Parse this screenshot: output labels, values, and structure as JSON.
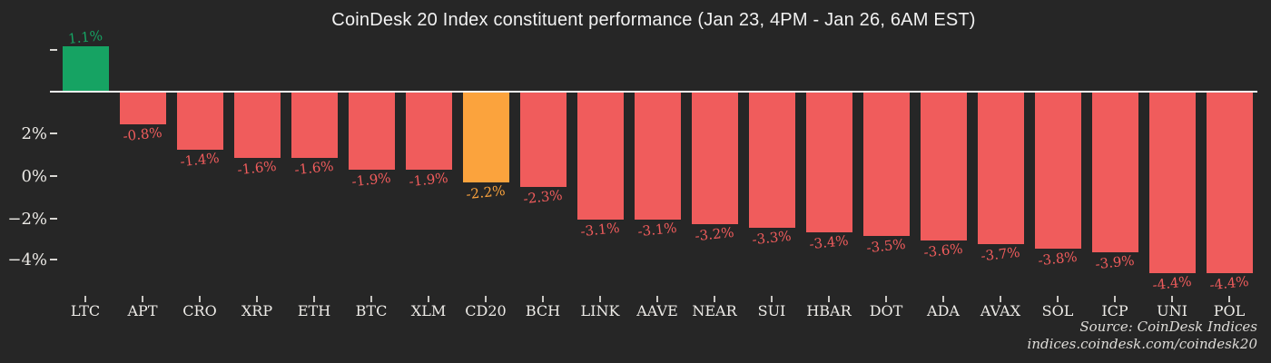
{
  "title": "CoinDesk 20 Index constituent performance (Jan 23, 4PM - Jan 26, 6AM EST)",
  "source": {
    "line1": "Source: CoinDesk Indices",
    "line2": "indices.coindesk.com/coindesk20"
  },
  "colors": {
    "background": "#262626",
    "positive": "#16a363",
    "negative": "#f05c5c",
    "index_highlight": "#fba33d",
    "baseline": "#f2f2f2",
    "axis_text": "#ebe9e5"
  },
  "y_axis": {
    "tick_labels": [
      "",
      "2%",
      "0%",
      "−2%",
      "−4%"
    ]
  },
  "chart_data": {
    "type": "bar",
    "title": "CoinDesk 20 Index constituent performance (Jan 23, 4PM - Jan 26, 6AM EST)",
    "xlabel": "",
    "ylabel": "",
    "grid": false,
    "legend": "none",
    "y_tick_labels_shown": [
      "2%",
      "0%",
      "−2%",
      "−4%"
    ],
    "categories": [
      "LTC",
      "APT",
      "CRO",
      "XRP",
      "ETH",
      "BTC",
      "XLM",
      "CD20",
      "BCH",
      "LINK",
      "AAVE",
      "NEAR",
      "SUI",
      "HBAR",
      "DOT",
      "ADA",
      "AVAX",
      "SOL",
      "ICP",
      "UNI",
      "POL"
    ],
    "values": [
      1.1,
      -0.8,
      -1.4,
      -1.6,
      -1.6,
      -1.9,
      -1.9,
      -2.2,
      -2.3,
      -3.1,
      -3.1,
      -3.2,
      -3.3,
      -3.4,
      -3.5,
      -3.6,
      -3.7,
      -3.8,
      -3.9,
      -4.4,
      -4.4
    ],
    "value_labels": [
      "1.1%",
      "-0.8%",
      "-1.4%",
      "-1.6%",
      "-1.6%",
      "-1.9%",
      "-1.9%",
      "-2.2%",
      "-2.3%",
      "-3.1%",
      "-3.1%",
      "-3.2%",
      "-3.3%",
      "-3.4%",
      "-3.5%",
      "-3.6%",
      "-3.7%",
      "-3.8%",
      "-3.9%",
      "-4.4%",
      "-4.4%"
    ],
    "bar_roles": [
      "positive",
      "negative",
      "negative",
      "negative",
      "negative",
      "negative",
      "negative",
      "index",
      "negative",
      "negative",
      "negative",
      "negative",
      "negative",
      "negative",
      "negative",
      "negative",
      "negative",
      "negative",
      "negative",
      "negative",
      "negative"
    ]
  }
}
